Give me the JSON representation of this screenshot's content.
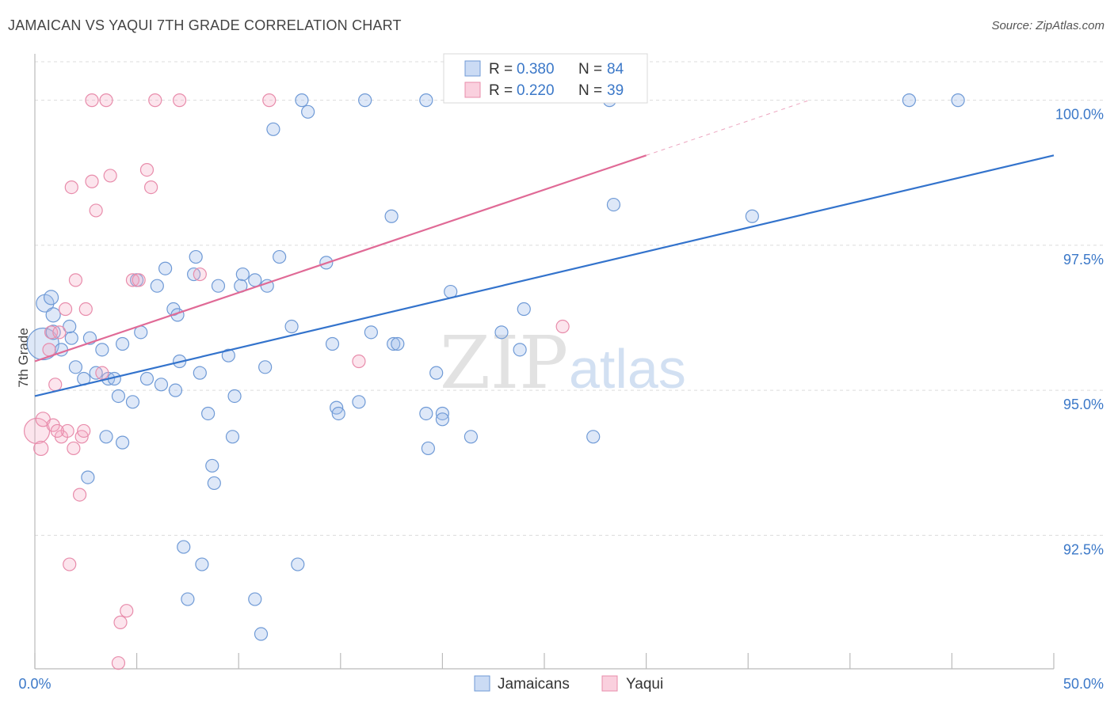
{
  "header": {
    "title": "JAMAICAN VS YAQUI 7TH GRADE CORRELATION CHART",
    "source": "Source: ZipAtlas.com"
  },
  "watermark": {
    "zip": "ZIP",
    "atlas": "atlas"
  },
  "legend": {
    "r_label": "R =",
    "n_label": "N =",
    "rows": [
      {
        "name": "Jamaicans",
        "r": "0.380",
        "n": "84",
        "color": "#6f9ad6"
      },
      {
        "name": "Yaqui",
        "r": "0.220",
        "n": "39",
        "color": "#e88cab"
      }
    ]
  },
  "chart_data": {
    "type": "scatter",
    "title": "JAMAICAN VS YAQUI 7TH GRADE CORRELATION CHART",
    "xlabel": "",
    "ylabel": "7th Grade",
    "xlim": [
      0,
      50
    ],
    "ylim": [
      90.2,
      100.8
    ],
    "x_tick_labels": [
      "0.0%",
      "50.0%"
    ],
    "y_ticks": [
      92.5,
      95.0,
      97.5,
      100.0
    ],
    "y_tick_labels": [
      "92.5%",
      "95.0%",
      "97.5%",
      "100.0%"
    ],
    "series": [
      {
        "name": "Jamaicans",
        "color": "#3373cc",
        "trend": {
          "x0": 0,
          "y0": 94.9,
          "x1": 50,
          "y1": 99.05
        },
        "points": [
          [
            0.4,
            95.8,
            20
          ],
          [
            0.5,
            96.5,
            11
          ],
          [
            0.9,
            96.3,
            9
          ],
          [
            0.9,
            96.0,
            9
          ],
          [
            0.8,
            96.6,
            9
          ],
          [
            1.3,
            95.7,
            8
          ],
          [
            2.0,
            95.4,
            8
          ],
          [
            1.8,
            95.9,
            8
          ],
          [
            1.7,
            96.1,
            8
          ],
          [
            2.4,
            95.2,
            8
          ],
          [
            3.0,
            95.3,
            8
          ],
          [
            3.3,
            95.7,
            8
          ],
          [
            3.6,
            95.2,
            8
          ],
          [
            4.1,
            94.9,
            8
          ],
          [
            4.3,
            95.8,
            8
          ],
          [
            4.8,
            94.8,
            8
          ],
          [
            5.2,
            96.0,
            8
          ],
          [
            5.5,
            95.2,
            8
          ],
          [
            6.0,
            96.8,
            8
          ],
          [
            5.0,
            96.9,
            8
          ],
          [
            6.4,
            97.1,
            8
          ],
          [
            6.2,
            95.1,
            8
          ],
          [
            6.8,
            96.4,
            8
          ],
          [
            7.1,
            95.5,
            8
          ],
          [
            7.3,
            92.3,
            8
          ],
          [
            7.0,
            96.3,
            8
          ],
          [
            7.8,
            97.0,
            8
          ],
          [
            7.9,
            97.3,
            8
          ],
          [
            8.1,
            95.3,
            8
          ],
          [
            8.5,
            94.6,
            8
          ],
          [
            8.7,
            93.7,
            8
          ],
          [
            9.0,
            96.8,
            8
          ],
          [
            8.2,
            92.0,
            8
          ],
          [
            7.5,
            91.4,
            8
          ],
          [
            9.5,
            95.6,
            8
          ],
          [
            9.7,
            94.2,
            8
          ],
          [
            9.8,
            94.9,
            8
          ],
          [
            8.8,
            93.4,
            8
          ],
          [
            10.2,
            97.0,
            8
          ],
          [
            10.1,
            96.8,
            8
          ],
          [
            10.8,
            96.9,
            8
          ],
          [
            11.4,
            96.8,
            8
          ],
          [
            11.3,
            95.4,
            8
          ],
          [
            12.0,
            97.3,
            8
          ],
          [
            11.7,
            99.5,
            8
          ],
          [
            12.6,
            96.1,
            8
          ],
          [
            10.8,
            91.4,
            8
          ],
          [
            11.1,
            90.8,
            8
          ],
          [
            13.1,
            100.0,
            8
          ],
          [
            13.4,
            99.8,
            8
          ],
          [
            14.3,
            97.2,
            8
          ],
          [
            14.6,
            95.8,
            8
          ],
          [
            14.8,
            94.7,
            8
          ],
          [
            14.9,
            94.6,
            8
          ],
          [
            15.9,
            94.8,
            8
          ],
          [
            12.9,
            92.0,
            8
          ],
          [
            16.2,
            100.0,
            8
          ],
          [
            16.5,
            96.0,
            8
          ],
          [
            17.6,
            95.8,
            8
          ],
          [
            17.8,
            95.8,
            8
          ],
          [
            17.5,
            98.0,
            8
          ],
          [
            19.2,
            100.0,
            8
          ],
          [
            19.2,
            94.6,
            8
          ],
          [
            19.7,
            95.3,
            8
          ],
          [
            20.0,
            94.6,
            8
          ],
          [
            19.3,
            94.0,
            8
          ],
          [
            20.0,
            94.5,
            8
          ],
          [
            20.4,
            96.7,
            8
          ],
          [
            21.4,
            94.2,
            8
          ],
          [
            22.9,
            96.0,
            8
          ],
          [
            23.8,
            95.7,
            8
          ],
          [
            24.0,
            96.4,
            8
          ],
          [
            27.4,
            94.2,
            8
          ],
          [
            28.4,
            98.2,
            8
          ],
          [
            28.2,
            100.0,
            8
          ],
          [
            35.2,
            98.0,
            8
          ],
          [
            42.9,
            100.0,
            8
          ],
          [
            45.3,
            100.0,
            8
          ],
          [
            3.9,
            95.2,
            8
          ],
          [
            2.6,
            93.5,
            8
          ],
          [
            2.7,
            95.9,
            8
          ],
          [
            4.3,
            94.1,
            8
          ],
          [
            6.9,
            95.0,
            8
          ],
          [
            3.5,
            94.2,
            8
          ]
        ]
      },
      {
        "name": "Yaqui",
        "color": "#e06a96",
        "trend": {
          "x0": 0,
          "y0": 95.5,
          "x1": 30,
          "y1": 99.05
        },
        "trend_dashed": {
          "x0": 30,
          "y0": 99.05,
          "x1": 38,
          "y1": 100.0
        },
        "points": [
          [
            0.1,
            94.3,
            16
          ],
          [
            0.3,
            94.0,
            9
          ],
          [
            0.4,
            94.5,
            9
          ],
          [
            0.7,
            95.7,
            8
          ],
          [
            0.8,
            96.0,
            8
          ],
          [
            0.9,
            94.4,
            8
          ],
          [
            1.0,
            95.1,
            8
          ],
          [
            1.2,
            96.0,
            8
          ],
          [
            1.3,
            94.2,
            8
          ],
          [
            1.5,
            96.4,
            8
          ],
          [
            1.6,
            94.3,
            8
          ],
          [
            1.7,
            92.0,
            8
          ],
          [
            1.9,
            94.0,
            8
          ],
          [
            2.0,
            96.9,
            8
          ],
          [
            2.2,
            93.2,
            8
          ],
          [
            2.3,
            94.2,
            8
          ],
          [
            2.4,
            94.3,
            8
          ],
          [
            2.5,
            96.4,
            8
          ],
          [
            1.8,
            98.5,
            8
          ],
          [
            2.8,
            98.6,
            8
          ],
          [
            3.0,
            98.1,
            8
          ],
          [
            3.3,
            95.3,
            8
          ],
          [
            3.7,
            98.7,
            8
          ],
          [
            4.2,
            91.0,
            8
          ],
          [
            4.1,
            90.3,
            8
          ],
          [
            4.5,
            91.2,
            8
          ],
          [
            4.8,
            96.9,
            8
          ],
          [
            5.1,
            96.9,
            8
          ],
          [
            5.5,
            98.8,
            8
          ],
          [
            5.7,
            98.5,
            8
          ],
          [
            2.8,
            100.0,
            8
          ],
          [
            3.5,
            100.0,
            8
          ],
          [
            5.9,
            100.0,
            8
          ],
          [
            7.1,
            100.0,
            8
          ],
          [
            8.1,
            97.0,
            8
          ],
          [
            11.5,
            100.0,
            8
          ],
          [
            15.9,
            95.5,
            8
          ],
          [
            25.9,
            96.1,
            8
          ],
          [
            1.1,
            94.3,
            8
          ]
        ]
      }
    ]
  }
}
